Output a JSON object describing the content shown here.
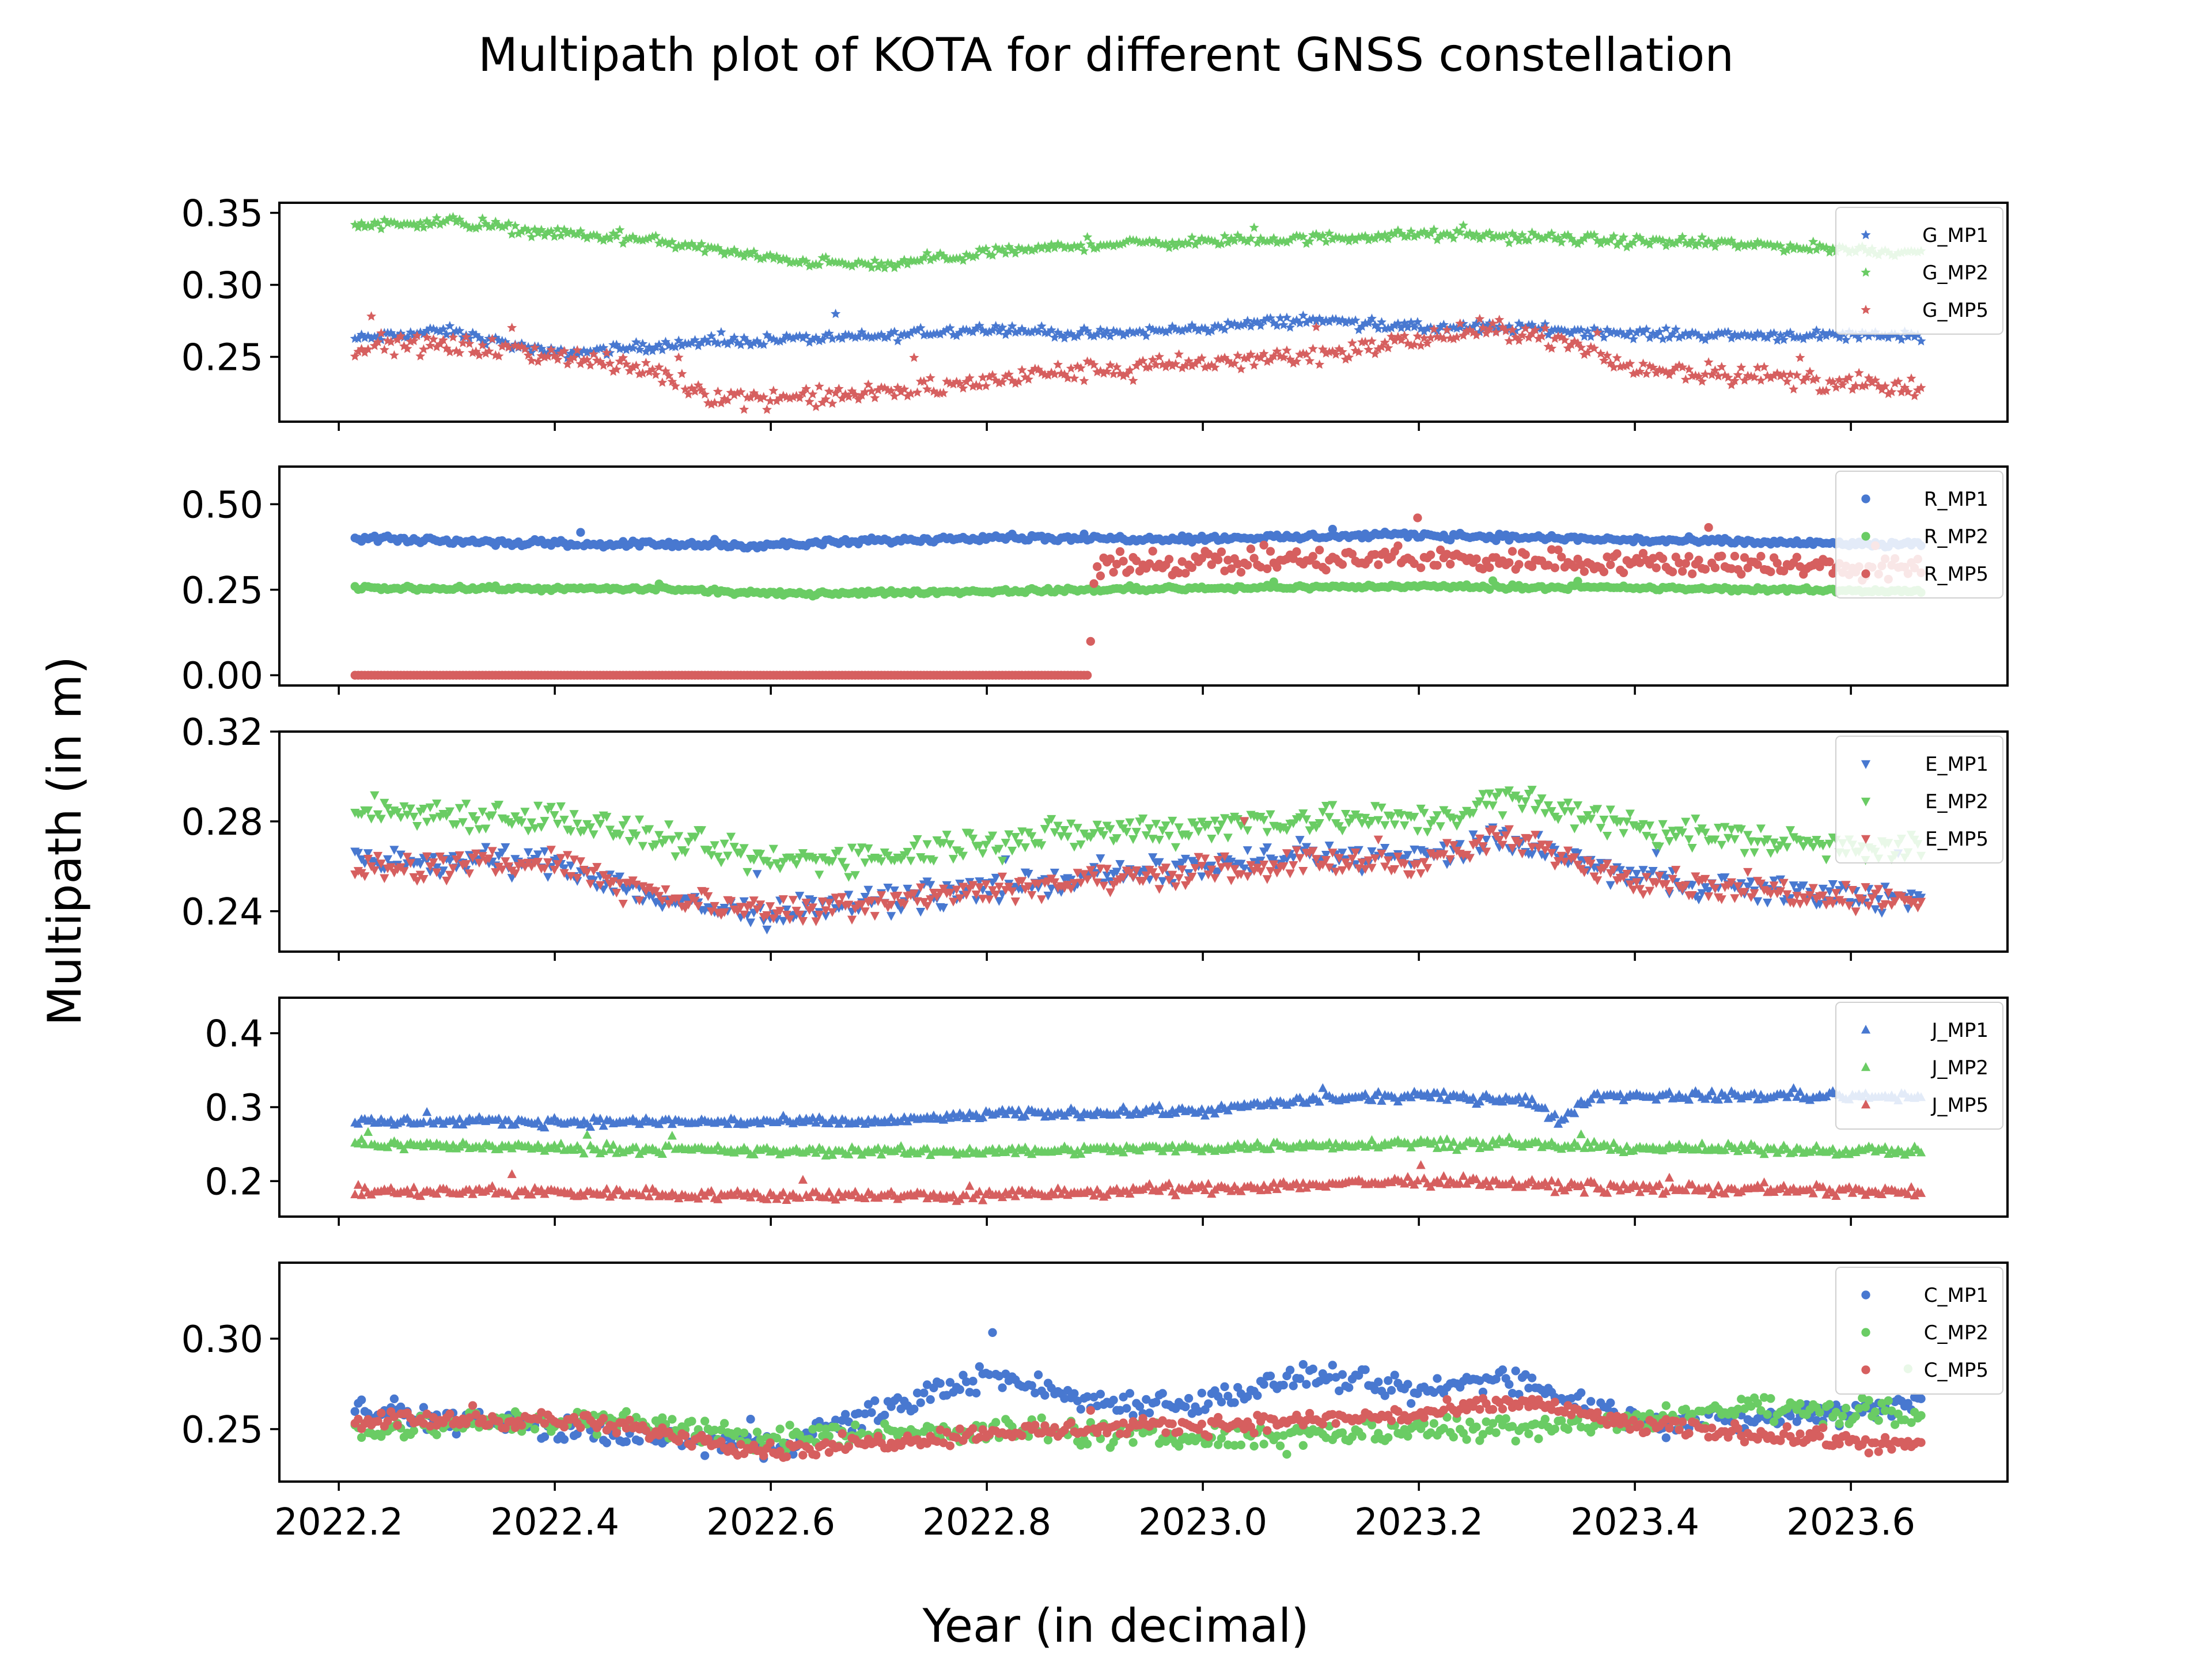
{
  "figure": {
    "title": "Multipath plot of KOTA for different GNSS constellation",
    "xlabel": "Year (in decimal)",
    "ylabel": "Multipath (in m)"
  },
  "chart_data": [
    {
      "type": "scatter",
      "marker": "star",
      "legend_placement": "top-right",
      "grid": false,
      "xlim": [
        2022.145,
        2023.745
      ],
      "ylim": [
        0.205,
        0.357
      ],
      "xticks": [
        2022.2,
        2022.4,
        2022.6,
        2022.8,
        2023.0,
        2023.2,
        2023.4,
        2023.6
      ],
      "yticks": [
        0.25,
        0.3,
        0.35
      ],
      "ytick_labels": [
        "0.25",
        "0.30",
        "0.35"
      ],
      "x_range": [
        2022.215,
        2023.665
      ],
      "n_points": 480,
      "series": [
        {
          "name": "G_MP1",
          "color": "#4878d0",
          "noise": 0.003,
          "nodes": [
            [
              2022.21,
              0.262
            ],
            [
              2022.3,
              0.268
            ],
            [
              2022.4,
              0.252
            ],
            [
              2022.5,
              0.258
            ],
            [
              2022.6,
              0.262
            ],
            [
              2022.7,
              0.264
            ],
            [
              2022.8,
              0.27
            ],
            [
              2022.9,
              0.265
            ],
            [
              2023.0,
              0.27
            ],
            [
              2023.1,
              0.276
            ],
            [
              2023.2,
              0.27
            ],
            [
              2023.3,
              0.27
            ],
            [
              2023.4,
              0.266
            ],
            [
              2023.5,
              0.265
            ],
            [
              2023.67,
              0.265
            ]
          ]
        },
        {
          "name": "G_MP2",
          "color": "#6acc64",
          "noise": 0.003,
          "nodes": [
            [
              2022.21,
              0.341
            ],
            [
              2022.3,
              0.344
            ],
            [
              2022.4,
              0.336
            ],
            [
              2022.5,
              0.33
            ],
            [
              2022.6,
              0.318
            ],
            [
              2022.7,
              0.313
            ],
            [
              2022.8,
              0.322
            ],
            [
              2022.9,
              0.328
            ],
            [
              2023.0,
              0.33
            ],
            [
              2023.1,
              0.332
            ],
            [
              2023.2,
              0.335
            ],
            [
              2023.3,
              0.333
            ],
            [
              2023.4,
              0.33
            ],
            [
              2023.5,
              0.328
            ],
            [
              2023.67,
              0.322
            ]
          ]
        },
        {
          "name": "G_MP5",
          "color": "#d65f5f",
          "noise": 0.006,
          "nodes": [
            [
              2022.21,
              0.258
            ],
            [
              2022.3,
              0.258
            ],
            [
              2022.4,
              0.252
            ],
            [
              2022.5,
              0.238
            ],
            [
              2022.55,
              0.222
            ],
            [
              2022.65,
              0.222
            ],
            [
              2022.75,
              0.228
            ],
            [
              2022.85,
              0.238
            ],
            [
              2022.95,
              0.243
            ],
            [
              2023.05,
              0.248
            ],
            [
              2023.15,
              0.256
            ],
            [
              2023.25,
              0.268
            ],
            [
              2023.3,
              0.268
            ],
            [
              2023.4,
              0.242
            ],
            [
              2023.5,
              0.238
            ],
            [
              2023.67,
              0.226
            ]
          ]
        }
      ]
    },
    {
      "type": "scatter",
      "marker": "circle",
      "legend_placement": "top-right",
      "grid": false,
      "xlim": [
        2022.145,
        2023.745
      ],
      "ylim": [
        -0.03,
        0.61
      ],
      "xticks": [
        2022.2,
        2022.4,
        2022.6,
        2022.8,
        2023.0,
        2023.2,
        2023.4,
        2023.6
      ],
      "yticks": [
        0.0,
        0.25,
        0.5
      ],
      "ytick_labels": [
        "0.00",
        "0.25",
        "0.50"
      ],
      "x_range": [
        2022.215,
        2023.665
      ],
      "n_points": 480,
      "series": [
        {
          "name": "R_MP1",
          "color": "#4878d0",
          "noise": 0.008,
          "nodes": [
            [
              2022.21,
              0.4
            ],
            [
              2022.4,
              0.385
            ],
            [
              2022.6,
              0.38
            ],
            [
              2022.8,
              0.405
            ],
            [
              2022.9,
              0.4
            ],
            [
              2023.0,
              0.4
            ],
            [
              2023.2,
              0.41
            ],
            [
              2023.4,
              0.395
            ],
            [
              2023.67,
              0.38
            ]
          ]
        },
        {
          "name": "R_MP2",
          "color": "#6acc64",
          "noise": 0.005,
          "nodes": [
            [
              2022.21,
              0.255
            ],
            [
              2022.5,
              0.252
            ],
            [
              2022.6,
              0.238
            ],
            [
              2022.8,
              0.245
            ],
            [
              2023.0,
              0.255
            ],
            [
              2023.2,
              0.26
            ],
            [
              2023.4,
              0.255
            ],
            [
              2023.67,
              0.245
            ]
          ]
        },
        {
          "name": "R_MP5",
          "color": "#d65f5f",
          "noise": 0.03,
          "nodes": [
            [
              2022.21,
              0.0
            ],
            [
              2022.895,
              0.0
            ],
            [
              2022.9,
              0.33
            ],
            [
              2023.0,
              0.33
            ],
            [
              2023.2,
              0.34
            ],
            [
              2023.4,
              0.33
            ],
            [
              2023.67,
              0.31
            ]
          ]
        }
      ]
    },
    {
      "type": "scatter",
      "marker": "triangle-down",
      "legend_placement": "top-right",
      "grid": false,
      "xlim": [
        2022.145,
        2023.745
      ],
      "ylim": [
        0.222,
        0.32
      ],
      "xticks": [
        2022.2,
        2022.4,
        2022.6,
        2022.8,
        2023.0,
        2023.2,
        2023.4,
        2023.6
      ],
      "yticks": [
        0.24,
        0.28,
        0.32
      ],
      "ytick_labels": [
        "0.24",
        "0.28",
        "0.32"
      ],
      "x_range": [
        2022.215,
        2023.665
      ],
      "n_points": 480,
      "series": [
        {
          "name": "E_MP1",
          "color": "#4878d0",
          "noise": 0.005,
          "nodes": [
            [
              2022.21,
              0.262
            ],
            [
              2022.4,
              0.262
            ],
            [
              2022.5,
              0.245
            ],
            [
              2022.6,
              0.238
            ],
            [
              2022.7,
              0.245
            ],
            [
              2022.8,
              0.25
            ],
            [
              2023.0,
              0.26
            ],
            [
              2023.1,
              0.265
            ],
            [
              2023.2,
              0.263
            ],
            [
              2023.28,
              0.272
            ],
            [
              2023.4,
              0.255
            ],
            [
              2023.5,
              0.25
            ],
            [
              2023.67,
              0.245
            ]
          ]
        },
        {
          "name": "E_MP2",
          "color": "#6acc64",
          "noise": 0.006,
          "nodes": [
            [
              2022.21,
              0.285
            ],
            [
              2022.4,
              0.282
            ],
            [
              2022.5,
              0.272
            ],
            [
              2022.6,
              0.262
            ],
            [
              2022.7,
              0.265
            ],
            [
              2022.8,
              0.272
            ],
            [
              2023.0,
              0.278
            ],
            [
              2023.1,
              0.282
            ],
            [
              2023.2,
              0.28
            ],
            [
              2023.28,
              0.29
            ],
            [
              2023.4,
              0.278
            ],
            [
              2023.5,
              0.272
            ],
            [
              2023.67,
              0.268
            ]
          ]
        },
        {
          "name": "E_MP5",
          "color": "#d65f5f",
          "noise": 0.005,
          "nodes": [
            [
              2022.21,
              0.258
            ],
            [
              2022.4,
              0.262
            ],
            [
              2022.5,
              0.247
            ],
            [
              2022.6,
              0.24
            ],
            [
              2022.7,
              0.245
            ],
            [
              2022.8,
              0.25
            ],
            [
              2023.0,
              0.258
            ],
            [
              2023.1,
              0.262
            ],
            [
              2023.2,
              0.262
            ],
            [
              2023.28,
              0.272
            ],
            [
              2023.4,
              0.255
            ],
            [
              2023.5,
              0.25
            ],
            [
              2023.67,
              0.245
            ]
          ]
        }
      ]
    },
    {
      "type": "scatter",
      "marker": "triangle-up",
      "legend_placement": "top-right",
      "grid": false,
      "xlim": [
        2022.145,
        2023.745
      ],
      "ylim": [
        0.152,
        0.448
      ],
      "xticks": [
        2022.2,
        2022.4,
        2022.6,
        2022.8,
        2023.0,
        2023.2,
        2023.4,
        2023.6
      ],
      "yticks": [
        0.2,
        0.3,
        0.4
      ],
      "ytick_labels": [
        "0.2",
        "0.3",
        "0.4"
      ],
      "x_range": [
        2022.215,
        2023.665
      ],
      "n_points": 480,
      "series": [
        {
          "name": "J_MP1",
          "color": "#4878d0",
          "noise": 0.005,
          "nodes": [
            [
              2022.21,
              0.28
            ],
            [
              2022.5,
              0.28
            ],
            [
              2022.7,
              0.28
            ],
            [
              2022.8,
              0.29
            ],
            [
              2023.0,
              0.295
            ],
            [
              2023.1,
              0.31
            ],
            [
              2023.2,
              0.315
            ],
            [
              2023.3,
              0.31
            ],
            [
              2023.33,
              0.28
            ],
            [
              2023.36,
              0.315
            ],
            [
              2023.5,
              0.315
            ],
            [
              2023.67,
              0.315
            ]
          ]
        },
        {
          "name": "J_MP2",
          "color": "#6acc64",
          "noise": 0.005,
          "nodes": [
            [
              2022.21,
              0.25
            ],
            [
              2022.4,
              0.245
            ],
            [
              2022.6,
              0.24
            ],
            [
              2022.8,
              0.24
            ],
            [
              2023.0,
              0.245
            ],
            [
              2023.2,
              0.252
            ],
            [
              2023.4,
              0.245
            ],
            [
              2023.67,
              0.24
            ]
          ]
        },
        {
          "name": "J_MP5",
          "color": "#d65f5f",
          "noise": 0.006,
          "nodes": [
            [
              2022.21,
              0.185
            ],
            [
              2022.4,
              0.185
            ],
            [
              2022.6,
              0.18
            ],
            [
              2022.8,
              0.18
            ],
            [
              2023.0,
              0.19
            ],
            [
              2023.2,
              0.2
            ],
            [
              2023.4,
              0.19
            ],
            [
              2023.67,
              0.185
            ]
          ]
        }
      ]
    },
    {
      "type": "scatter",
      "marker": "circle",
      "legend_placement": "top-right",
      "grid": false,
      "xlim": [
        2022.145,
        2023.745
      ],
      "ylim": [
        0.221,
        0.342
      ],
      "xticks": [
        2022.2,
        2022.4,
        2022.6,
        2022.8,
        2023.0,
        2023.2,
        2023.4,
        2023.6
      ],
      "yticks": [
        0.25,
        0.3
      ],
      "ytick_labels": [
        "0.25",
        "0.30"
      ],
      "xtick_labels": [
        "2022.2",
        "2022.4",
        "2022.6",
        "2022.8",
        "2023.0",
        "2023.2",
        "2023.4",
        "2023.6"
      ],
      "x_range": [
        2022.215,
        2023.665
      ],
      "n_points": 480,
      "series": [
        {
          "name": "C_MP1",
          "color": "#4878d0",
          "noise": 0.006,
          "nodes": [
            [
              2022.21,
              0.26
            ],
            [
              2022.4,
              0.25
            ],
            [
              2022.5,
              0.245
            ],
            [
              2022.6,
              0.24
            ],
            [
              2022.7,
              0.26
            ],
            [
              2022.8,
              0.28
            ],
            [
              2022.9,
              0.265
            ],
            [
              2023.0,
              0.265
            ],
            [
              2023.1,
              0.28
            ],
            [
              2023.2,
              0.27
            ],
            [
              2023.28,
              0.28
            ],
            [
              2023.4,
              0.255
            ],
            [
              2023.5,
              0.255
            ],
            [
              2023.67,
              0.265
            ]
          ]
        },
        {
          "name": "C_MP2",
          "color": "#6acc64",
          "noise": 0.006,
          "nodes": [
            [
              2022.21,
              0.25
            ],
            [
              2022.4,
              0.255
            ],
            [
              2022.5,
              0.252
            ],
            [
              2022.6,
              0.245
            ],
            [
              2022.8,
              0.25
            ],
            [
              2023.0,
              0.245
            ],
            [
              2023.2,
              0.25
            ],
            [
              2023.4,
              0.255
            ],
            [
              2023.5,
              0.262
            ],
            [
              2023.67,
              0.258
            ]
          ]
        },
        {
          "name": "C_MP5",
          "color": "#d65f5f",
          "noise": 0.004,
          "nodes": [
            [
              2022.21,
              0.255
            ],
            [
              2022.4,
              0.255
            ],
            [
              2022.5,
              0.248
            ],
            [
              2022.6,
              0.238
            ],
            [
              2022.8,
              0.248
            ],
            [
              2023.0,
              0.252
            ],
            [
              2023.2,
              0.258
            ],
            [
              2023.3,
              0.265
            ],
            [
              2023.4,
              0.252
            ],
            [
              2023.5,
              0.248
            ],
            [
              2023.67,
              0.24
            ]
          ]
        }
      ]
    }
  ]
}
